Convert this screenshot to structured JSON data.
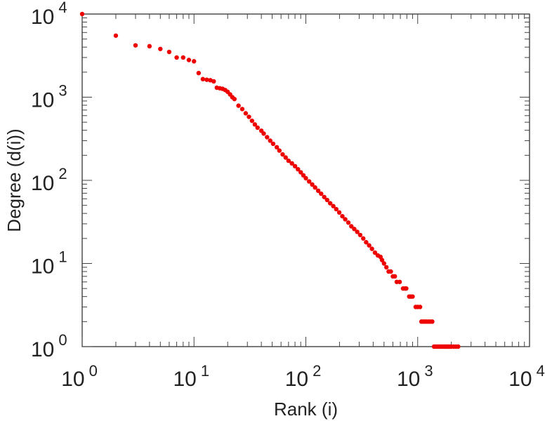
{
  "chart_data": {
    "type": "scatter",
    "title": "",
    "xlabel": "Rank (i)",
    "ylabel": "Degree (d(i))",
    "x_scale": "log",
    "y_scale": "log",
    "xlim": [
      1,
      10000
    ],
    "ylim": [
      1,
      10000
    ],
    "grid": false,
    "marker_color": "#ee0000",
    "x_ticks": [
      {
        "base": "10",
        "exp": "0",
        "value": 1
      },
      {
        "base": "10",
        "exp": "1",
        "value": 10
      },
      {
        "base": "10",
        "exp": "2",
        "value": 100
      },
      {
        "base": "10",
        "exp": "3",
        "value": 1000
      },
      {
        "base": "10",
        "exp": "4",
        "value": 10000
      }
    ],
    "y_ticks": [
      {
        "base": "10",
        "exp": "0",
        "value": 1
      },
      {
        "base": "10",
        "exp": "1",
        "value": 10
      },
      {
        "base": "10",
        "exp": "2",
        "value": 100
      },
      {
        "base": "10",
        "exp": "3",
        "value": 1000
      },
      {
        "base": "10",
        "exp": "4",
        "value": 10000
      }
    ],
    "points": [
      [
        1,
        10000
      ],
      [
        2,
        5500
      ],
      [
        3,
        4200
      ],
      [
        4,
        4100
      ],
      [
        5,
        3800
      ],
      [
        6,
        3500
      ],
      [
        7,
        3000
      ],
      [
        8,
        3000
      ],
      [
        9,
        2800
      ],
      [
        10,
        2700
      ],
      [
        11,
        1950
      ],
      [
        12,
        1650
      ],
      [
        13,
        1620
      ],
      [
        14,
        1600
      ],
      [
        15,
        1550
      ],
      [
        16,
        1300
      ],
      [
        17,
        1280
      ],
      [
        18,
        1260
      ],
      [
        19,
        1220
      ],
      [
        20,
        1160
      ],
      [
        21,
        1080
      ],
      [
        22,
        1000
      ],
      [
        23,
        950
      ],
      [
        25,
        790
      ],
      [
        27,
        720
      ],
      [
        29,
        640
      ],
      [
        31,
        580
      ],
      [
        33,
        520
      ],
      [
        35,
        470
      ],
      [
        37,
        430
      ],
      [
        40,
        395
      ],
      [
        42,
        365
      ],
      [
        45,
        330
      ],
      [
        48,
        300
      ],
      [
        51,
        275
      ],
      [
        55,
        250
      ],
      [
        58,
        228
      ],
      [
        62,
        205
      ],
      [
        66,
        188
      ],
      [
        70,
        172
      ],
      [
        75,
        160
      ],
      [
        80,
        148
      ],
      [
        85,
        136
      ],
      [
        90,
        125
      ],
      [
        95,
        115
      ],
      [
        100,
        106
      ],
      [
        107,
        97
      ],
      [
        114,
        89
      ],
      [
        121,
        82
      ],
      [
        129,
        75
      ],
      [
        137,
        69
      ],
      [
        146,
        63
      ],
      [
        155,
        58
      ],
      [
        165,
        53
      ],
      [
        176,
        49
      ],
      [
        187,
        45
      ],
      [
        199,
        41
      ],
      [
        212,
        37
      ],
      [
        225,
        34
      ],
      [
        240,
        31
      ],
      [
        255,
        28
      ],
      [
        271,
        26
      ],
      [
        288,
        24
      ],
      [
        306,
        22
      ],
      [
        326,
        20
      ],
      [
        346,
        18
      ],
      [
        368,
        16.5
      ],
      [
        390,
        15
      ],
      [
        415,
        13.5
      ],
      [
        440,
        12.5
      ],
      [
        465,
        12
      ],
      [
        480,
        11
      ],
      [
        500,
        10
      ],
      [
        525,
        9
      ],
      [
        550,
        8
      ],
      [
        575,
        8
      ],
      [
        600,
        7
      ],
      [
        625,
        7
      ],
      [
        650,
        6
      ],
      [
        690,
        6
      ],
      [
        740,
        5
      ],
      [
        770,
        5
      ],
      [
        790,
        5
      ],
      [
        840,
        4
      ],
      [
        870,
        4
      ],
      [
        900,
        4
      ],
      [
        960,
        3
      ],
      [
        1000,
        3
      ],
      [
        1050,
        3
      ],
      [
        1080,
        2
      ],
      [
        1120,
        2
      ],
      [
        1160,
        2
      ],
      [
        1200,
        2
      ],
      [
        1250,
        2
      ],
      [
        1300,
        2
      ],
      [
        1350,
        2
      ],
      [
        1400,
        1
      ],
      [
        1450,
        1
      ],
      [
        1500,
        1
      ],
      [
        1550,
        1
      ],
      [
        1600,
        1
      ],
      [
        1650,
        1
      ],
      [
        1700,
        1
      ],
      [
        1750,
        1
      ],
      [
        1800,
        1
      ],
      [
        1850,
        1
      ],
      [
        1900,
        1
      ],
      [
        1950,
        1
      ],
      [
        2000,
        1
      ],
      [
        2100,
        1
      ],
      [
        2200,
        1
      ],
      [
        2300,
        1
      ]
    ]
  }
}
